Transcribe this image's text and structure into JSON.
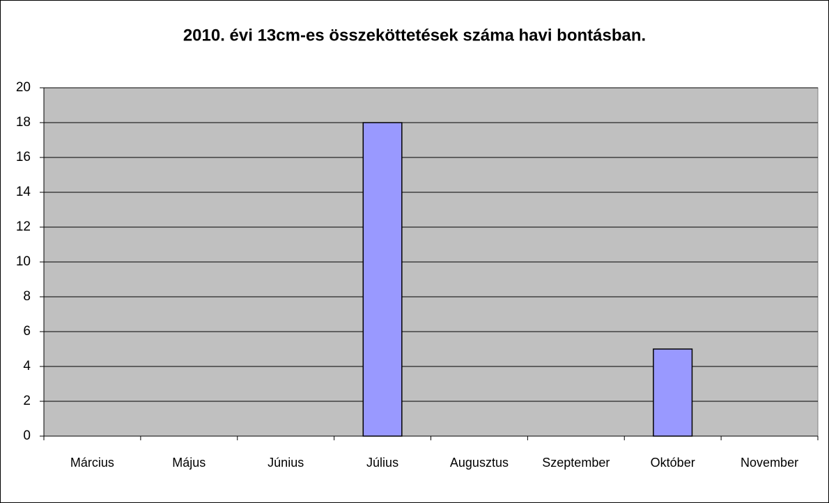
{
  "chart_data": {
    "type": "bar",
    "title": "2010. évi 13cm-es összeköttetések száma havi bontásban.",
    "categories": [
      "Március",
      "Május",
      "Június",
      "Július",
      "Augusztus",
      "Szeptember",
      "Október",
      "November"
    ],
    "values": [
      0,
      0,
      0,
      18,
      0,
      0,
      5,
      0
    ],
    "color": "#9999ff",
    "ylim": [
      0,
      20
    ],
    "yticks": [
      0,
      2,
      4,
      6,
      8,
      10,
      12,
      14,
      16,
      18,
      20
    ],
    "grid": true
  }
}
